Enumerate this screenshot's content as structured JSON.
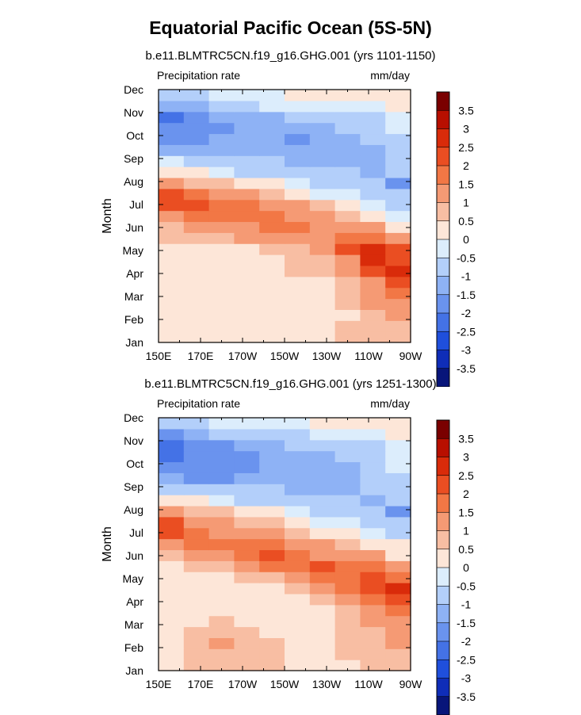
{
  "title": "Equatorial Pacific Ocean (5S-5N)",
  "chart_data": [
    {
      "type": "heatmap",
      "subtitle": "b.e11.BLMTRC5CN.f19_g16.GHG.001 (yrs 1101-1150)",
      "variable": "Precipitation rate",
      "units": "mm/day",
      "ylabel": "Month",
      "x_ticks": [
        "150E",
        "170E",
        "170W",
        "150W",
        "130W",
        "110W",
        "90W"
      ],
      "y_ticks": [
        "Jan",
        "Feb",
        "Mar",
        "Apr",
        "May",
        "Jun",
        "Jul",
        "Aug",
        "Sep",
        "Oct",
        "Nov",
        "Dec"
      ],
      "colorbar_levels": [
        "3.5",
        "3",
        "2.5",
        "2",
        "1.5",
        "1",
        "0.5",
        "0",
        "-0.5",
        "-1",
        "-1.5",
        "-2",
        "-2.5",
        "-3",
        "-3.5"
      ],
      "colorbar_colors": [
        "#7a0000",
        "#b80f00",
        "#d92b0a",
        "#ea4e22",
        "#f27745",
        "#f59a74",
        "#f8bea3",
        "#fde6d8",
        "#dcedfc",
        "#b3cffa",
        "#8eb2f5",
        "#6a93ee",
        "#4472e6",
        "#1f4fdc",
        "#0f2db8",
        "#08157a"
      ],
      "grid_values": [
        [
          0.3,
          0.3,
          0.3,
          0.3,
          0.3,
          0.3,
          0.3,
          0.5,
          0.6,
          0.8
        ],
        [
          0.3,
          0.3,
          0.3,
          0.3,
          0.0,
          0.3,
          0.3,
          0.5,
          0.6,
          0.8
        ],
        [
          0.3,
          0.3,
          0.3,
          0.3,
          0.3,
          0.3,
          0.3,
          0.3,
          0.8,
          1.0
        ],
        [
          0.3,
          0.3,
          0.3,
          0.3,
          0.0,
          0.3,
          0.3,
          0.5,
          1.0,
          1.3
        ],
        [
          0.3,
          0.3,
          0.3,
          0.3,
          0.3,
          0.3,
          0.3,
          0.8,
          1.2,
          1.8
        ],
        [
          0.3,
          0.0,
          0.3,
          0.3,
          0.3,
          0.3,
          0.3,
          0.8,
          1.3,
          2.2
        ],
        [
          0.3,
          0.3,
          0.3,
          0.3,
          0.3,
          0.5,
          0.8,
          1.2,
          2.0,
          2.8
        ],
        [
          0.3,
          0.3,
          0.3,
          0.3,
          0.3,
          0.5,
          0.8,
          1.3,
          2.5,
          2.0
        ],
        [
          0.3,
          0.3,
          0.3,
          0.3,
          0.5,
          0.8,
          1.3,
          2.0,
          2.6,
          2.2
        ],
        [
          0.5,
          0.6,
          0.8,
          1.0,
          1.2,
          1.3,
          1.4,
          1.6,
          1.8,
          1.0
        ],
        [
          0.8,
          1.0,
          1.0,
          1.2,
          1.5,
          1.6,
          1.4,
          1.2,
          1.0,
          0.3
        ],
        [
          1.2,
          1.8,
          1.6,
          1.7,
          1.5,
          1.3,
          1.0,
          0.6,
          0.3,
          -0.3
        ],
        [
          2.0,
          2.2,
          1.8,
          1.6,
          1.4,
          1.0,
          0.5,
          0.2,
          -0.3,
          -0.8
        ],
        [
          2.0,
          1.5,
          1.3,
          1.0,
          0.5,
          0.2,
          -0.3,
          -0.5,
          -0.6,
          -0.9
        ],
        [
          1.0,
          0.6,
          0.5,
          0.3,
          0.0,
          -0.5,
          -0.8,
          -0.9,
          -1.0,
          -1.6
        ],
        [
          0.2,
          0.0,
          -0.5,
          -0.8,
          -0.8,
          -1.0,
          -1.0,
          -1.0,
          -1.1,
          -0.8
        ],
        [
          -0.5,
          -0.6,
          -0.8,
          -1.0,
          -1.0,
          -1.1,
          -1.1,
          -1.1,
          -1.2,
          -0.8
        ],
        [
          -1.2,
          -1.3,
          -1.3,
          -1.3,
          -1.3,
          -1.2,
          -1.2,
          -1.2,
          -1.2,
          -0.8
        ],
        [
          -1.7,
          -1.7,
          -1.5,
          -1.4,
          -1.3,
          -1.7,
          -1.3,
          -1.2,
          -1.0,
          -0.6
        ],
        [
          -1.9,
          -1.8,
          -1.6,
          -1.3,
          -1.2,
          -1.2,
          -1.2,
          -1.0,
          -0.8,
          -0.4
        ],
        [
          -2.2,
          -1.8,
          -1.5,
          -1.3,
          -1.1,
          -1.0,
          -0.9,
          -0.8,
          -0.6,
          -0.3
        ],
        [
          -1.5,
          -1.3,
          -1.0,
          -0.6,
          -0.5,
          -0.5,
          -0.4,
          -0.4,
          -0.2,
          0.2
        ],
        [
          -0.8,
          -0.6,
          -0.3,
          -0.2,
          -0.2,
          0.0,
          0.0,
          0.0,
          0.3,
          0.3
        ]
      ]
    },
    {
      "type": "heatmap",
      "subtitle": "b.e11.BLMTRC5CN.f19_g16.GHG.001 (yrs 1251-1300)",
      "variable": "Precipitation rate",
      "units": "mm/day",
      "ylabel": "Month",
      "x_ticks": [
        "150E",
        "170E",
        "170W",
        "150W",
        "130W",
        "110W",
        "90W"
      ],
      "y_ticks": [
        "Jan",
        "Feb",
        "Mar",
        "Apr",
        "May",
        "Jun",
        "Jul",
        "Aug",
        "Sep",
        "Oct",
        "Nov",
        "Dec"
      ],
      "colorbar_levels": [
        "3.5",
        "3",
        "2.5",
        "2",
        "1.5",
        "1",
        "0.5",
        "0",
        "-0.5",
        "-1",
        "-1.5",
        "-2",
        "-2.5",
        "-3",
        "-3.5"
      ],
      "colorbar_colors": [
        "#7a0000",
        "#b80f00",
        "#d92b0a",
        "#ea4e22",
        "#f27745",
        "#f59a74",
        "#f8bea3",
        "#fde6d8",
        "#dcedfc",
        "#b3cffa",
        "#8eb2f5",
        "#6a93ee",
        "#4472e6",
        "#1f4fdc",
        "#0f2db8",
        "#08157a"
      ],
      "grid_values": [
        [
          0.4,
          0.5,
          0.6,
          0.6,
          0.6,
          0.4,
          0.3,
          0.4,
          0.6,
          0.8
        ],
        [
          0.4,
          0.6,
          0.8,
          0.7,
          0.6,
          0.4,
          0.3,
          0.5,
          0.7,
          0.9
        ],
        [
          0.3,
          0.7,
          1.1,
          0.7,
          0.6,
          0.4,
          0.3,
          0.5,
          0.8,
          1.0
        ],
        [
          0.3,
          0.6,
          0.8,
          0.6,
          0.3,
          0.4,
          0.3,
          0.6,
          0.9,
          1.1
        ],
        [
          0.2,
          0.3,
          0.5,
          0.4,
          0.0,
          0.0,
          0.3,
          0.7,
          1.0,
          1.3
        ],
        [
          0.3,
          0.3,
          0.3,
          0.3,
          0.0,
          0.0,
          0.4,
          0.8,
          1.2,
          1.6
        ],
        [
          0.3,
          0.3,
          0.0,
          0.3,
          0.3,
          0.4,
          0.6,
          1.2,
          1.8,
          2.2
        ],
        [
          0.3,
          0.0,
          0.0,
          0.3,
          0.4,
          0.6,
          1.0,
          1.5,
          2.3,
          2.6
        ],
        [
          0.3,
          0.3,
          0.3,
          0.5,
          0.8,
          1.2,
          1.5,
          1.8,
          2.0,
          1.8
        ],
        [
          0.0,
          0.5,
          0.8,
          1.2,
          1.6,
          1.8,
          2.0,
          1.8,
          1.5,
          1.0
        ],
        [
          0.6,
          1.0,
          1.3,
          1.8,
          2.0,
          1.8,
          1.4,
          1.2,
          1.0,
          0.4
        ],
        [
          1.2,
          1.5,
          1.6,
          1.8,
          1.6,
          1.3,
          1.0,
          0.6,
          0.3,
          0.0
        ],
        [
          2.0,
          1.5,
          1.3,
          1.2,
          1.0,
          0.7,
          0.4,
          0.1,
          -0.3,
          -0.6
        ],
        [
          2.2,
          1.3,
          1.0,
          0.7,
          0.5,
          0.2,
          -0.2,
          -0.5,
          -0.6,
          -0.8
        ],
        [
          1.2,
          0.8,
          0.5,
          0.3,
          0.0,
          -0.4,
          -0.6,
          -0.8,
          -0.9,
          -1.6
        ],
        [
          0.3,
          0.0,
          -0.4,
          -0.7,
          -0.9,
          -1.0,
          -1.0,
          -1.0,
          -1.1,
          -0.9
        ],
        [
          -0.6,
          -0.8,
          -0.9,
          -1.0,
          -1.0,
          -1.1,
          -1.1,
          -1.1,
          -1.0,
          -0.8
        ],
        [
          -1.4,
          -1.6,
          -1.6,
          -1.5,
          -1.3,
          -1.2,
          -1.2,
          -1.2,
          -1.0,
          -0.7
        ],
        [
          -1.8,
          -1.8,
          -1.8,
          -1.8,
          -1.3,
          -1.2,
          -1.2,
          -1.1,
          -1.0,
          -0.5
        ],
        [
          -2.1,
          -2.0,
          -1.9,
          -1.8,
          -1.3,
          -1.2,
          -1.1,
          -1.0,
          -0.9,
          -0.3
        ],
        [
          -2.2,
          -1.9,
          -1.8,
          -1.5,
          -1.2,
          -1.0,
          -0.9,
          -0.8,
          -0.6,
          -0.2
        ],
        [
          -1.6,
          -1.2,
          -1.0,
          -0.8,
          -0.7,
          -0.6,
          -0.5,
          -0.4,
          -0.3,
          0.2
        ],
        [
          -0.7,
          -0.6,
          -0.4,
          -0.3,
          -0.2,
          -0.1,
          0.0,
          0.0,
          0.3,
          0.3
        ]
      ]
    }
  ]
}
